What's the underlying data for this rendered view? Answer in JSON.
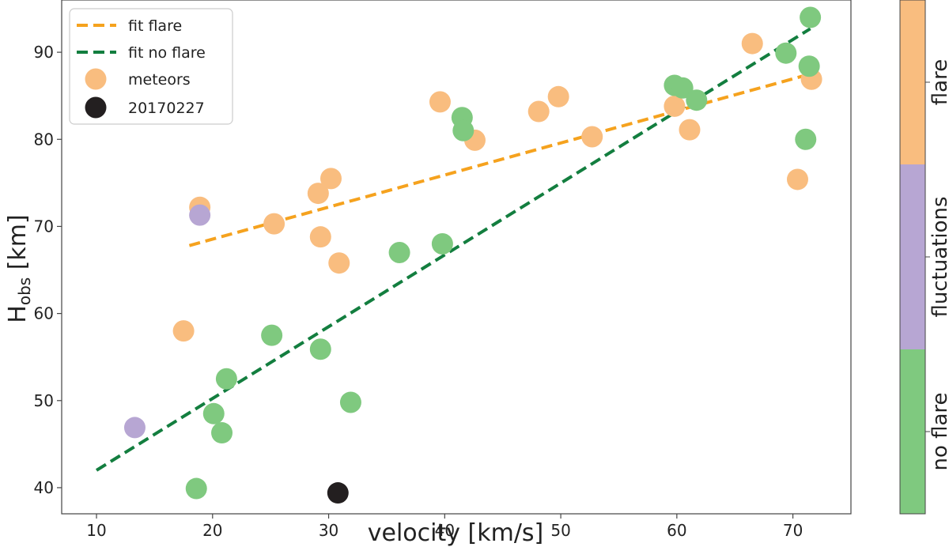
{
  "chart_data": {
    "type": "scatter",
    "title": "",
    "xlabel": "velocity [km/s]",
    "ylabel_main": "H",
    "ylabel_sub": "obs",
    "ylabel_unit": " [km]",
    "xlim": [
      7,
      75
    ],
    "ylim": [
      37,
      96
    ],
    "xticks": [
      10,
      20,
      30,
      40,
      50,
      60,
      70
    ],
    "yticks": [
      40,
      50,
      60,
      70,
      80,
      90
    ],
    "colors": {
      "flare": "#f9bd7f",
      "fluctuations": "#b7a6d3",
      "no_flare": "#7fc97f",
      "event": "#231f20",
      "fit_flare": "#f5a21e",
      "fit_no_flare": "#137e3f"
    },
    "legend": {
      "position": "top-left",
      "entries": [
        {
          "label": "fit flare",
          "kind": "line",
          "color": "#f5a21e"
        },
        {
          "label": "fit no flare",
          "kind": "line",
          "color": "#137e3f"
        },
        {
          "label": "meteors",
          "kind": "marker",
          "color": "#f9bd7f"
        },
        {
          "label": "20170227",
          "kind": "marker",
          "color": "#231f20"
        }
      ]
    },
    "fits": [
      {
        "name": "fit flare",
        "x": [
          18,
          71.5
        ],
        "y": [
          67.8,
          87.5
        ]
      },
      {
        "name": "fit no flare",
        "x": [
          10,
          71.5
        ],
        "y": [
          42,
          92.7
        ]
      }
    ],
    "colorbar": {
      "categories": [
        {
          "label": "no flare",
          "color": "#7fc97f"
        },
        {
          "label": "fluctuations",
          "color": "#b7a6d3"
        },
        {
          "label": "flare",
          "color": "#f9bd7f"
        }
      ]
    },
    "series": [
      {
        "name": "flare",
        "points": [
          [
            17.5,
            58
          ],
          [
            18.9,
            72.2
          ],
          [
            25.3,
            70.3
          ],
          [
            29.1,
            73.8
          ],
          [
            29.3,
            68.8
          ],
          [
            30.2,
            75.5
          ],
          [
            30.9,
            65.8
          ],
          [
            39.6,
            84.3
          ],
          [
            42.6,
            79.9
          ],
          [
            48.1,
            83.2
          ],
          [
            49.8,
            84.9
          ],
          [
            52.7,
            80.3
          ],
          [
            59.8,
            83.8
          ],
          [
            61.1,
            81.1
          ],
          [
            66.5,
            91
          ],
          [
            70.4,
            75.4
          ],
          [
            71.6,
            86.9
          ]
        ]
      },
      {
        "name": "fluctuations",
        "points": [
          [
            13.3,
            46.9
          ],
          [
            18.9,
            71.3
          ]
        ]
      },
      {
        "name": "no flare",
        "points": [
          [
            18.6,
            39.9
          ],
          [
            20.1,
            48.5
          ],
          [
            20.8,
            46.3
          ],
          [
            21.2,
            52.5
          ],
          [
            25.1,
            57.5
          ],
          [
            29.3,
            55.9
          ],
          [
            31.9,
            49.8
          ],
          [
            36.1,
            67
          ],
          [
            39.8,
            68
          ],
          [
            41.5,
            82.5
          ],
          [
            41.6,
            81
          ],
          [
            59.8,
            86.2
          ],
          [
            60.5,
            85.9
          ],
          [
            61.7,
            84.5
          ],
          [
            69.4,
            89.9
          ],
          [
            71.1,
            80
          ],
          [
            71.4,
            88.4
          ],
          [
            71.5,
            94
          ]
        ]
      },
      {
        "name": "20170227",
        "points": [
          [
            30.8,
            39.4
          ]
        ]
      }
    ]
  }
}
